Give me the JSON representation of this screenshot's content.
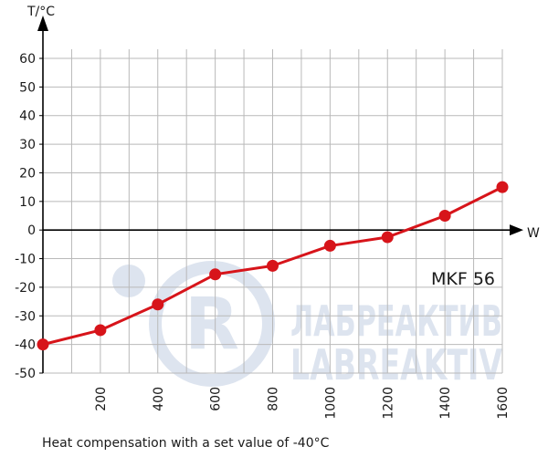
{
  "chart_data": {
    "type": "line",
    "title": "",
    "xlabel": "W",
    "ylabel": "T/°C",
    "xlim": [
      0,
      1600
    ],
    "ylim": [
      -50,
      60
    ],
    "x_ticks": [
      200,
      400,
      600,
      800,
      1000,
      1200,
      1400,
      1600
    ],
    "y_ticks": [
      60,
      50,
      40,
      30,
      20,
      10,
      0,
      -10,
      -20,
      -30,
      -40,
      -50
    ],
    "grid": true,
    "series": [
      {
        "name": "MKF 56",
        "color": "#d7141a",
        "x": [
          0,
          200,
          400,
          600,
          800,
          1000,
          1200,
          1400,
          1600
        ],
        "y": [
          -40,
          -35,
          -26,
          -15.5,
          -12.5,
          -5.5,
          -2.5,
          5,
          15
        ]
      }
    ],
    "annotation": "MKF 56",
    "caption": "Heat compensation with a set value of -40°C"
  },
  "watermark": {
    "logo_letter": "R",
    "line1": "ЛАБРЕАКТИВ",
    "line2": "LABREAKTIV",
    "color": "#dde4ef"
  }
}
